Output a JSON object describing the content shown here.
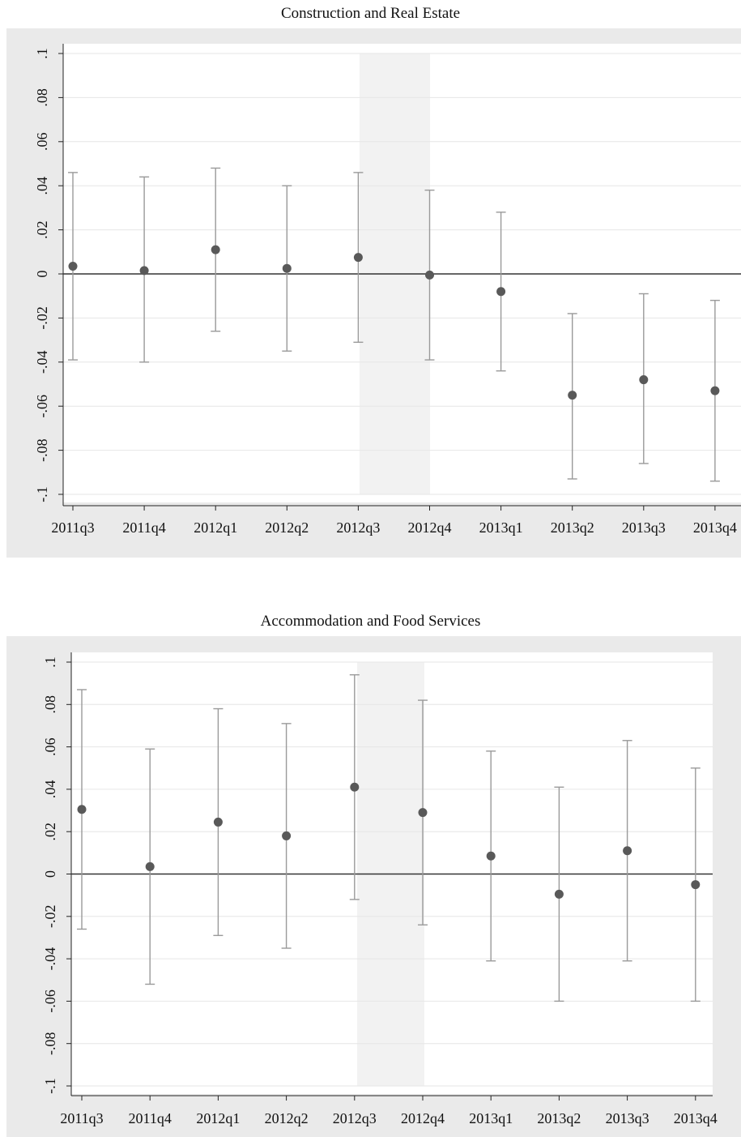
{
  "chart_data": [
    {
      "type": "scatter",
      "title": "Construction and Real Estate",
      "categories": [
        "2011q3",
        "2011q4",
        "2012q1",
        "2012q2",
        "2012q3",
        "2012q4",
        "2013q1",
        "2013q2",
        "2013q3",
        "2013q4"
      ],
      "y_tick_labels": [
        ".1",
        ".08",
        ".06",
        ".04",
        ".02",
        "0",
        "-.02",
        "-.04",
        "-.06",
        "-.08",
        "-.1"
      ],
      "y_ticks": [
        0.1,
        0.08,
        0.06,
        0.04,
        0.02,
        0,
        -0.02,
        -0.04,
        -0.06,
        -0.08,
        -0.1
      ],
      "ylim": [
        -0.1,
        0.1
      ],
      "shaded_region": [
        "2012q3",
        "2012q4"
      ],
      "reference_line": 0,
      "series": [
        {
          "estimate": [
            0.0035,
            0.0015,
            0.011,
            0.0025,
            0.0075,
            -0.0005,
            -0.008,
            -0.055,
            -0.048,
            -0.053
          ],
          "ci_low": [
            -0.039,
            -0.04,
            -0.026,
            -0.035,
            -0.031,
            -0.039,
            -0.044,
            -0.093,
            -0.086,
            -0.094
          ],
          "ci_high": [
            0.046,
            0.044,
            0.048,
            0.04,
            0.046,
            0.038,
            0.028,
            -0.018,
            -0.009,
            -0.012
          ]
        }
      ],
      "colors": {
        "marker": "#595959",
        "ci": "#9a9a9a",
        "zero_line": "#333333",
        "shade": "#f2f2f2",
        "grid": "#e6e6e6"
      },
      "grid": true
    },
    {
      "type": "scatter",
      "title": "Accommodation and Food Services",
      "categories": [
        "2011q3",
        "2011q4",
        "2012q1",
        "2012q2",
        "2012q3",
        "2012q4",
        "2013q1",
        "2013q2",
        "2013q3",
        "2013q4"
      ],
      "y_tick_labels": [
        ".1",
        ".08",
        ".06",
        ".04",
        ".02",
        "0",
        "-.02",
        "-.04",
        "-.06",
        "-.08",
        "-.1"
      ],
      "y_ticks": [
        0.1,
        0.08,
        0.06,
        0.04,
        0.02,
        0,
        -0.02,
        -0.04,
        -0.06,
        -0.08,
        -0.1
      ],
      "ylim": [
        -0.1,
        0.1
      ],
      "shaded_region": [
        "2012q3",
        "2012q4"
      ],
      "reference_line": 0,
      "series": [
        {
          "estimate": [
            0.0305,
            0.0035,
            0.0245,
            0.018,
            0.041,
            0.029,
            0.0085,
            -0.0095,
            0.011,
            -0.005
          ],
          "ci_low": [
            -0.026,
            -0.052,
            -0.029,
            -0.035,
            -0.012,
            -0.024,
            -0.041,
            -0.06,
            -0.041,
            -0.06
          ],
          "ci_high": [
            0.087,
            0.059,
            0.078,
            0.071,
            0.094,
            0.082,
            0.058,
            0.041,
            0.063,
            0.05
          ]
        }
      ],
      "colors": {
        "marker": "#595959",
        "ci": "#9a9a9a",
        "zero_line": "#333333",
        "shade": "#f2f2f2",
        "grid": "#e6e6e6"
      },
      "grid": true
    }
  ]
}
